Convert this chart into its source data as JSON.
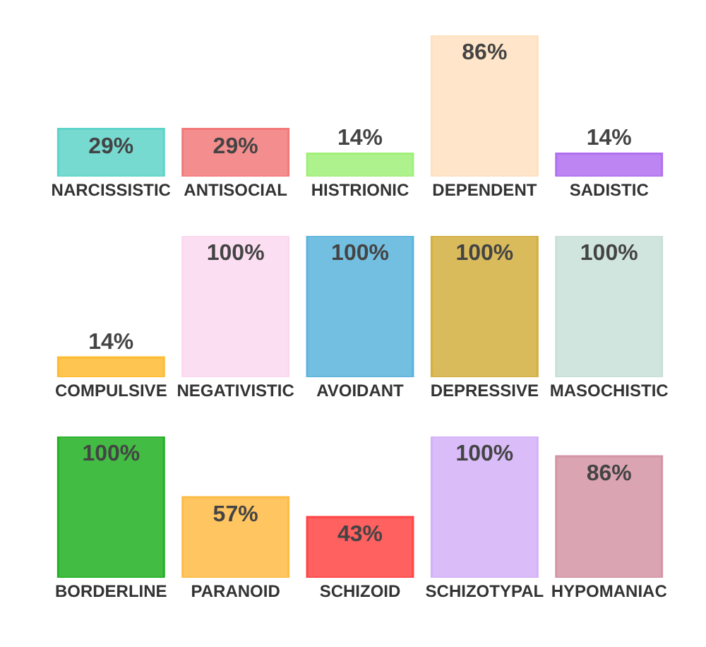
{
  "chart_data": [
    {
      "type": "bar",
      "categories": [
        "NARCISSISTIC",
        "ANTISOCIAL",
        "HISTRIONIC",
        "DEPENDENT",
        "SADISTIC"
      ],
      "values": [
        29,
        29,
        14,
        86,
        14
      ],
      "value_labels": [
        "29%",
        "29%",
        "14%",
        "86%",
        "14%"
      ],
      "colors": [
        "#5fd3c9",
        "#f27a7a",
        "#a0f07a",
        "#ffe0c0",
        "#b070f0"
      ],
      "tick_labels": "x"
    },
    {
      "type": "bar",
      "categories": [
        "COMPULSIVE",
        "NEGATIVISTIC",
        "AVOIDANT",
        "DEPRESSIVE",
        "MASOCHISTIC"
      ],
      "values": [
        14,
        100,
        100,
        100,
        100
      ],
      "value_labels": [
        "14%",
        "100%",
        "100%",
        "100%",
        "100%"
      ],
      "colors": [
        "#ffbb33",
        "#fcd8f0",
        "#5ab4dc",
        "#d4af3f",
        "#c8e0d8"
      ],
      "tick_labels": "x"
    },
    {
      "type": "bar",
      "categories": [
        "BORDERLINE",
        "PARANOID",
        "SCHIZOID",
        "SCHIZOTYPAL",
        "HYPOMANIAC"
      ],
      "values": [
        100,
        57,
        43,
        100,
        86
      ],
      "value_labels": [
        "100%",
        "57%",
        "43%",
        "100%",
        "86%"
      ],
      "colors": [
        "#22b022",
        "#ffbb44",
        "#ff4444",
        "#d4b0f8",
        "#d494a4"
      ],
      "tick_labels": "x"
    }
  ]
}
